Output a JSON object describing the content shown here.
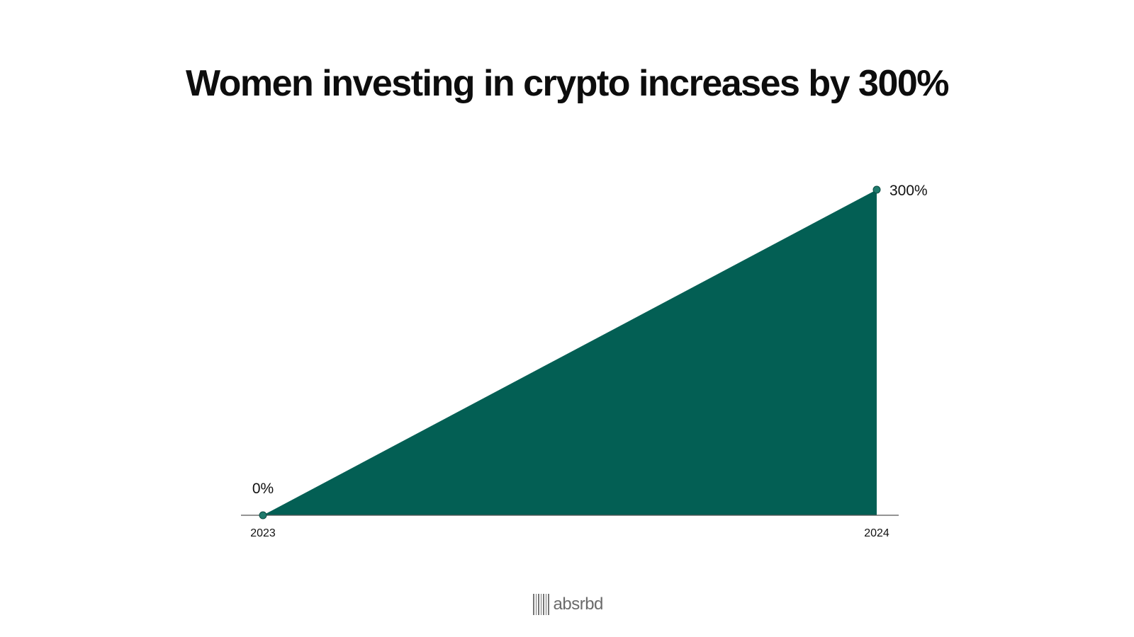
{
  "chart_data": {
    "type": "area",
    "title": "Women investing in crypto increases by 300%",
    "xlabel": "",
    "ylabel": "",
    "x": [
      "2023",
      "2024"
    ],
    "values": [
      0,
      300
    ],
    "data_labels": [
      "0%",
      "300%"
    ],
    "ylim": [
      0,
      300
    ],
    "grid": false,
    "legend": "none",
    "colors": {
      "area": "#035f54",
      "marker": "#1f7a6c",
      "axis": "#555555"
    }
  },
  "brand": {
    "name": "absrbd"
  }
}
